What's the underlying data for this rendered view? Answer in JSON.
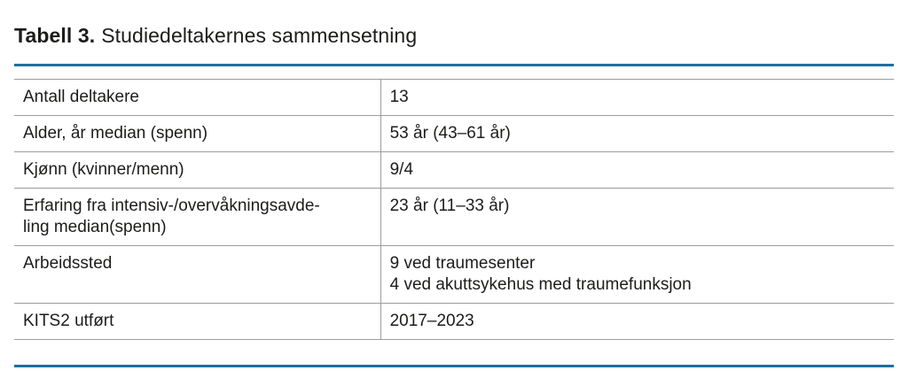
{
  "title": {
    "label": "Tabell 3.",
    "text": "Studiedeltakernes sammensetning"
  },
  "table": {
    "rows": [
      {
        "label": "Antall deltakere",
        "value": "13"
      },
      {
        "label": "Alder, år median (spenn)",
        "value": "53 år (43–61 år)"
      },
      {
        "label": "Kjønn (kvinner/menn)",
        "value": "9/4"
      },
      {
        "label": "Erfaring fra intensiv-/overvåkningsavde-\nling median(spenn)",
        "value": "23 år (11–33 år)"
      },
      {
        "label": "Arbeidssted",
        "value": "9 ved traumesenter\n4 ved akuttsykehus med traumefunksjon"
      },
      {
        "label": "KITS2 utført",
        "value": "2017–2023"
      }
    ]
  },
  "colors": {
    "accent_rule": "#1f6e9e",
    "table_border": "#9c9c9c",
    "text": "#1c1c1a",
    "background": "#ffffff"
  }
}
